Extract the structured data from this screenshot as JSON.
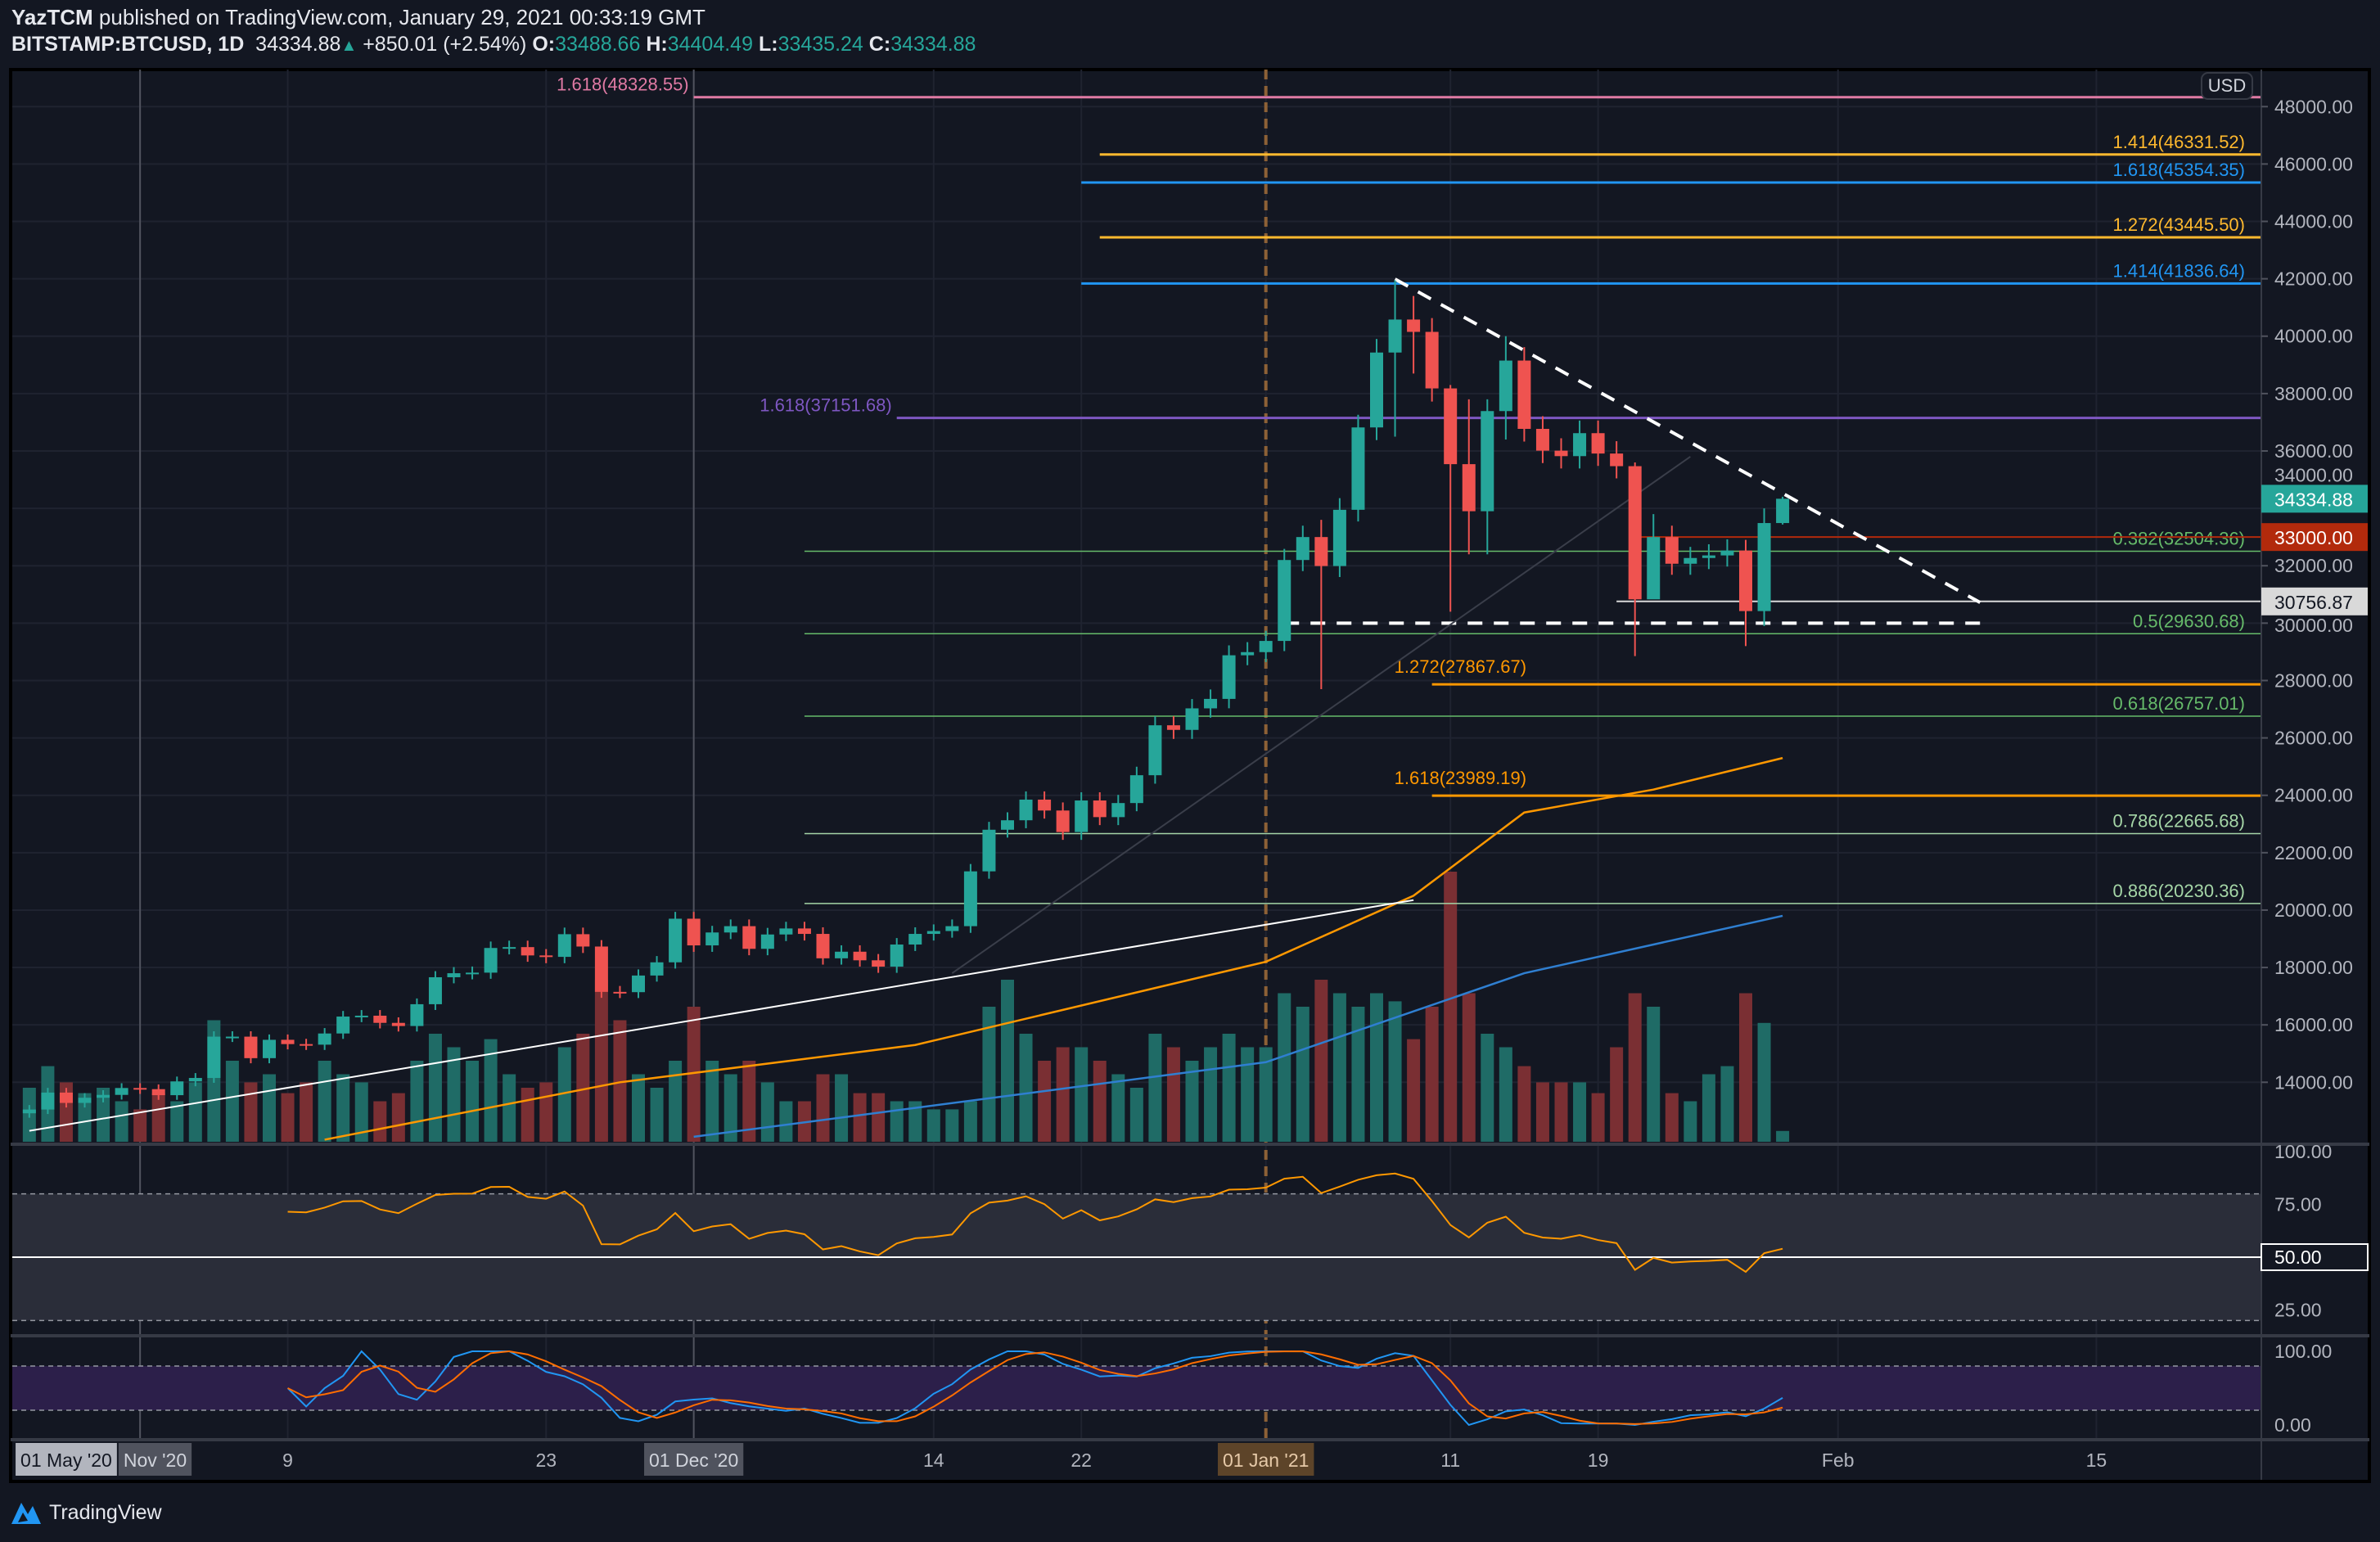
{
  "header": {
    "author": "YazTCM",
    "published": "published on TradingView.com, January 29, 2021 00:33:19 GMT",
    "symbol": "BITSTAMP:BTCUSD, 1D",
    "last": "34334.88",
    "change": "+850.01 (+2.54%)",
    "o_label": "O:",
    "o": "33488.66",
    "h_label": "H:",
    "h": "34404.49",
    "l_label": "L:",
    "l": "33435.24",
    "c_label": "C:",
    "c": "34334.88"
  },
  "price_axis": {
    "currency": "USD",
    "ticks": [
      "14000.00",
      "16000.00",
      "18000.00",
      "20000.00",
      "22000.00",
      "24000.00",
      "26000.00",
      "28000.00",
      "30000.00",
      "32000.00",
      "34000.00",
      "36000.00",
      "38000.00",
      "40000.00",
      "42000.00",
      "44000.00",
      "46000.00",
      "48000.00"
    ],
    "tags": [
      {
        "label": "34334.88",
        "value": 34334.88,
        "bg": "#26a69a",
        "fg": "#ffffff"
      },
      {
        "label": "33000.00",
        "value": 33000,
        "bg": "#b22a0c",
        "fg": "#ffffff"
      },
      {
        "label": "30756.87",
        "value": 30756.87,
        "bg": "#d9d9d9",
        "fg": "#131722"
      }
    ]
  },
  "time_axis": [
    {
      "label": "01 May '20",
      "day_index": 2,
      "box": "light"
    },
    {
      "label": "Nov '20",
      "day_index": 6,
      "box": "dark"
    },
    {
      "label": "9",
      "day_index": 14,
      "box": ""
    },
    {
      "label": "23",
      "day_index": 28,
      "box": ""
    },
    {
      "label": "01 Dec '20",
      "day_index": 36,
      "box": "dark"
    },
    {
      "label": "14",
      "day_index": 49,
      "box": ""
    },
    {
      "label": "22",
      "day_index": 57,
      "box": ""
    },
    {
      "label": "01 Jan '21",
      "day_index": 67,
      "box": "brown"
    },
    {
      "label": "11",
      "day_index": 77,
      "box": ""
    },
    {
      "label": "19",
      "day_index": 85,
      "box": ""
    },
    {
      "label": "Feb",
      "day_index": 98,
      "box": ""
    },
    {
      "label": "15",
      "day_index": 112,
      "box": ""
    }
  ],
  "rsi_axis": {
    "ticks": [
      {
        "label": "100.00",
        "value": 100
      },
      {
        "label": "75.00",
        "value": 75
      },
      {
        "label": "50.00",
        "value": 50,
        "boxed": true
      },
      {
        "label": "25.00",
        "value": 25
      }
    ]
  },
  "stoch_axis": {
    "ticks": [
      {
        "label": "100.00",
        "value": 100
      },
      {
        "label": "0.00",
        "value": 0
      }
    ]
  },
  "footer": {
    "brand": "TradingView"
  },
  "chart_data": {
    "type": "candlestick",
    "title": "BITSTAMP:BTCUSD, 1D",
    "start_date": "2020-10-26",
    "close": [
      13050,
      13640,
      13280,
      13460,
      13560,
      13800,
      13760,
      13550,
      14030,
      14150,
      15590,
      15590,
      14840,
      15480,
      15330,
      15310,
      15700,
      16290,
      16320,
      16070,
      15960,
      16720,
      17660,
      17800,
      17820,
      18680,
      18710,
      18420,
      18370,
      19160,
      18730,
      17150,
      17140,
      17720,
      18180,
      19700,
      18770,
      19220,
      19440,
      18650,
      19150,
      19360,
      19170,
      18320,
      18550,
      18250,
      18030,
      18800,
      19170,
      19270,
      19440,
      21350,
      22800,
      23130,
      23850,
      23470,
      22720,
      23820,
      23240,
      23730,
      24700,
      26440,
      26280,
      27030,
      27360,
      28880,
      28990,
      29380,
      32200,
      33000,
      31990,
      33950,
      36820,
      39430,
      40580,
      40150,
      38180,
      35540,
      33900,
      37390,
      39150,
      36770,
      36010,
      35820,
      36620,
      35910,
      35470,
      30830,
      33000,
      32070,
      32270,
      32360,
      32530,
      30420,
      33488,
      34334.88
    ],
    "wicks": {
      "70": [
        33600,
        27700
      ],
      "74": [
        41950,
        36500
      ],
      "75": [
        41400,
        38700
      ],
      "77": [
        38300,
        30400
      ],
      "78": [
        37800,
        32400
      ],
      "79": [
        37800,
        32400
      ],
      "80": [
        40000,
        36400
      ],
      "87": [
        35600,
        28850
      ],
      "88": [
        33800,
        31900
      ],
      "93": [
        32900,
        29200
      ],
      "94": [
        34000,
        29900
      ],
      "95": [
        34404.49,
        33435.24
      ]
    },
    "volume": [
      20,
      28,
      22,
      18,
      20,
      15,
      12,
      18,
      15,
      22,
      45,
      30,
      22,
      25,
      18,
      22,
      30,
      25,
      22,
      15,
      18,
      30,
      40,
      35,
      30,
      38,
      25,
      20,
      22,
      35,
      40,
      60,
      45,
      25,
      20,
      30,
      50,
      30,
      25,
      30,
      22,
      15,
      15,
      25,
      25,
      18,
      18,
      15,
      15,
      12,
      12,
      15,
      50,
      60,
      40,
      30,
      35,
      35,
      30,
      25,
      20,
      40,
      35,
      30,
      35,
      40,
      35,
      35,
      55,
      50,
      60,
      55,
      50,
      55,
      52,
      38,
      50,
      100,
      55,
      40,
      35,
      28,
      22,
      22,
      22,
      18,
      35,
      55,
      50,
      18,
      15,
      25,
      28,
      55,
      44,
      4
    ],
    "fib_levels": [
      {
        "label": "1.618(48328.55)",
        "value": 48328.55,
        "color": "#e07aa4",
        "start_index": 36,
        "label_side": "left"
      },
      {
        "label": "1.414(46331.52)",
        "value": 46331.52,
        "color": "#ffb92e",
        "start_index": 58,
        "label_side": "right"
      },
      {
        "label": "1.618(45354.35)",
        "value": 45354.35,
        "color": "#2196f3",
        "start_index": 57,
        "label_side": "right"
      },
      {
        "label": "1.272(43445.50)",
        "value": 43445.5,
        "color": "#ffb92e",
        "start_index": 58,
        "label_side": "right"
      },
      {
        "label": "1.414(41836.64)",
        "value": 41836.64,
        "color": "#2196f3",
        "start_index": 57,
        "label_side": "right"
      },
      {
        "label": "1.618(37151.68)",
        "value": 37151.68,
        "color": "#7e57c2",
        "start_index": 47,
        "label_side": "left"
      },
      {
        "label": "0.382(32504.36)",
        "value": 32504.36,
        "color": "#66bb6a",
        "start_index": 42,
        "label_side": "right"
      },
      {
        "label": "0.5(29630.68)",
        "value": 29630.68,
        "color": "#66bb6a",
        "start_index": 42,
        "label_side": "right"
      },
      {
        "label": "1.272(27867.67)",
        "value": 27867.67,
        "color": "#ff9800",
        "start_index": 76,
        "label_side": "left"
      },
      {
        "label": "0.618(26757.01)",
        "value": 26757.01,
        "color": "#66bb6a",
        "start_index": 42,
        "label_side": "right"
      },
      {
        "label": "1.618(23989.19)",
        "value": 23989.19,
        "color": "#ff9800",
        "start_index": 76,
        "label_side": "left"
      },
      {
        "label": "0.786(22665.68)",
        "value": 22665.68,
        "color": "#a5d6a7",
        "start_index": 42,
        "label_side": "right"
      },
      {
        "label": "0.886(20230.36)",
        "value": 20230.36,
        "color": "#a5d6a7",
        "start_index": 42,
        "label_side": "right"
      }
    ],
    "horizontal_lines": [
      {
        "value": 33000,
        "color": "#b22a0c",
        "start_index": 87
      },
      {
        "value": 30756.87,
        "color": "#d9d9d9",
        "start_index": 86
      }
    ],
    "trendlines": [
      {
        "from": [
          74,
          41989
        ],
        "to": [
          105.7,
          30720
        ],
        "color": "#ffffff",
        "dashed": true
      },
      {
        "from": [
          68,
          30000
        ],
        "to": [
          105.7,
          30000
        ],
        "color": "#ffffff",
        "dashed": true
      },
      {
        "from": [
          0,
          12307
        ],
        "to": [
          75,
          20349
        ],
        "color": "#ffffff",
        "dashed": false
      },
      {
        "from": [
          50,
          17800
        ],
        "to": [
          90,
          35800
        ],
        "color": "#3a3e4a",
        "dashed": false
      }
    ],
    "vertical_markers": [
      {
        "day_index": 6,
        "color": "#50535e",
        "dashed": false
      },
      {
        "day_index": 36,
        "color": "#50535e",
        "dashed": false
      },
      {
        "day_index": 67,
        "color": "#8d6136",
        "dashed": true
      }
    ],
    "moving_averages": [
      {
        "color": "#ff9800",
        "points": [
          [
            16,
            12000
          ],
          [
            32,
            14000
          ],
          [
            48,
            15300
          ],
          [
            67,
            18200
          ],
          [
            75,
            20500
          ],
          [
            81,
            23400
          ],
          [
            88,
            24200
          ],
          [
            95,
            25300
          ]
        ]
      },
      {
        "color": "#2f7fd1",
        "points": [
          [
            36,
            12100
          ],
          [
            67,
            14700
          ],
          [
            81,
            17800
          ],
          [
            95,
            19800
          ]
        ]
      }
    ],
    "price_range": [
      12000,
      49500
    ],
    "rsi": {
      "period": 14,
      "band": [
        20,
        80
      ],
      "mid": 50
    },
    "stoch_rsi": {
      "period": 14,
      "k": 3,
      "d": 3,
      "band": [
        20,
        80
      ]
    }
  }
}
